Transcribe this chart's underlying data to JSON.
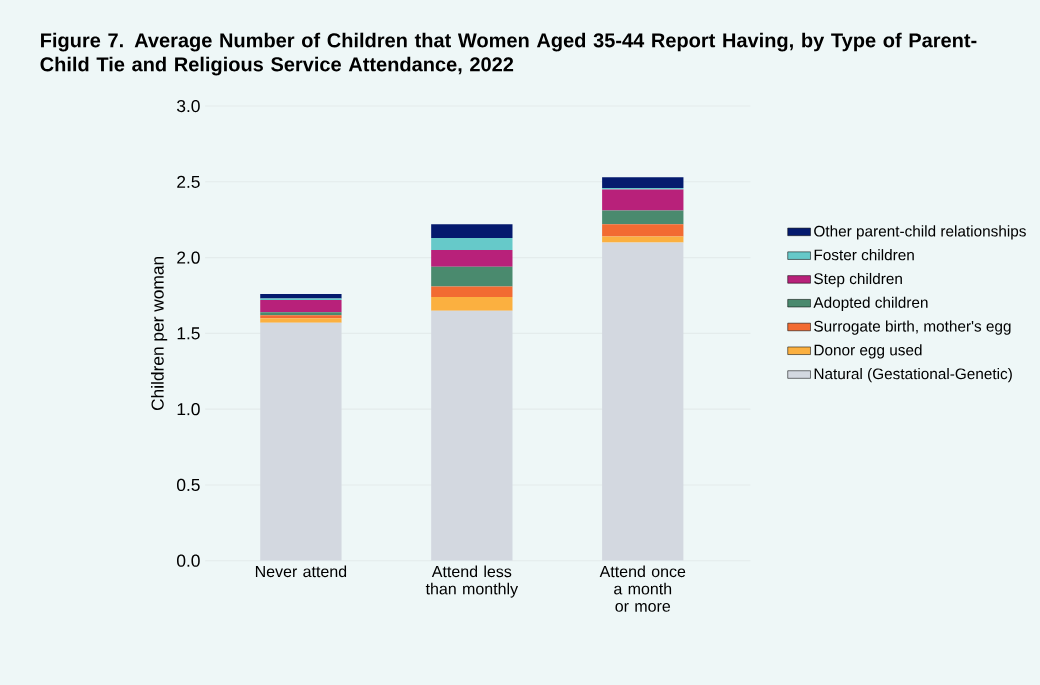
{
  "chart_data": {
    "type": "bar",
    "stacked": true,
    "title": "Figure 7. Average Number of Children that Women Aged 35-44 Report Having, by Type of Parent-Child Tie and Religious Service Attendance, 2022",
    "ylabel": "Children per woman",
    "categories": [
      "Never attend",
      "Attend less than monthly",
      "Attend once a month or more"
    ],
    "series": [
      {
        "name": "Natural (Gestational-Genetic)",
        "color": "#d3d8e0",
        "values": [
          1.57,
          1.65,
          2.1
        ]
      },
      {
        "name": "Donor egg used",
        "color": "#fbb040",
        "values": [
          0.03,
          0.09,
          0.04
        ]
      },
      {
        "name": "Surrogate birth, mother's egg",
        "color": "#f26b32",
        "values": [
          0.02,
          0.07,
          0.08
        ]
      },
      {
        "name": "Adopted children",
        "color": "#4a8a6e",
        "values": [
          0.02,
          0.13,
          0.09
        ]
      },
      {
        "name": "Step children",
        "color": "#b8217a",
        "values": [
          0.08,
          0.11,
          0.14
        ]
      },
      {
        "name": "Foster children",
        "color": "#66c9c9",
        "values": [
          0.01,
          0.08,
          0.01
        ]
      },
      {
        "name": "Other parent-child relationships",
        "color": "#041a6e",
        "values": [
          0.03,
          0.09,
          0.07
        ]
      }
    ],
    "ylim": [
      0,
      3.0
    ],
    "yticks": [
      {
        "value": 0,
        "label": "0.0"
      },
      0.5,
      {
        "value": 1,
        "label": "1.0"
      },
      1.5,
      {
        "value": 2,
        "label": "2.0"
      },
      2.5,
      {
        "value": 3,
        "label": "3.0"
      }
    ],
    "grid": "y",
    "legend": "right"
  }
}
